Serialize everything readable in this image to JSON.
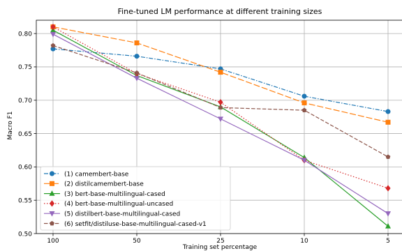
{
  "chart_data": {
    "type": "line",
    "title": "Fine-tuned LM performance at different training sizes",
    "xlabel": "Training set percentage",
    "ylabel": "Macro F1",
    "categories": [
      "100",
      "50",
      "25",
      "10",
      "5"
    ],
    "ylim": [
      0.5,
      0.82
    ],
    "yticks": [
      "0.50",
      "0.55",
      "0.60",
      "0.65",
      "0.70",
      "0.75",
      "0.80"
    ],
    "grid": true,
    "legend_position": "bottom-left",
    "series": [
      {
        "name": "(1) camembert-base",
        "values": [
          0.777,
          0.766,
          0.747,
          0.706,
          0.683
        ],
        "color": "#1f77b4",
        "dash": "dashdot",
        "marker": "circle"
      },
      {
        "name": "(2) distilcamembert-base",
        "values": [
          0.81,
          0.786,
          0.742,
          0.696,
          0.667
        ],
        "color": "#ff7f0e",
        "dash": "longdash",
        "marker": "square"
      },
      {
        "name": "(3) bert-base-multilingual-cased",
        "values": [
          0.805,
          0.737,
          0.69,
          0.614,
          0.511
        ],
        "color": "#2ca02c",
        "dash": "solid",
        "marker": "triangle-up"
      },
      {
        "name": "(4) bert-base-multilingual-uncased",
        "values": [
          0.81,
          0.74,
          0.697,
          0.61,
          0.568
        ],
        "color": "#d62728",
        "dash": "dotted",
        "marker": "diamond"
      },
      {
        "name": "(5) distilbert-base-multilingual-cased",
        "values": [
          0.799,
          0.733,
          0.672,
          0.61,
          0.53
        ],
        "color": "#9467bd",
        "dash": "solid",
        "marker": "triangle-down"
      },
      {
        "name": "(6) setfit/distiluse-base-multilingual-cased-v1",
        "values": [
          0.782,
          0.741,
          0.689,
          0.685,
          0.615
        ],
        "color": "#8c564b",
        "dash": "dashed",
        "marker": "pentagon"
      }
    ]
  }
}
